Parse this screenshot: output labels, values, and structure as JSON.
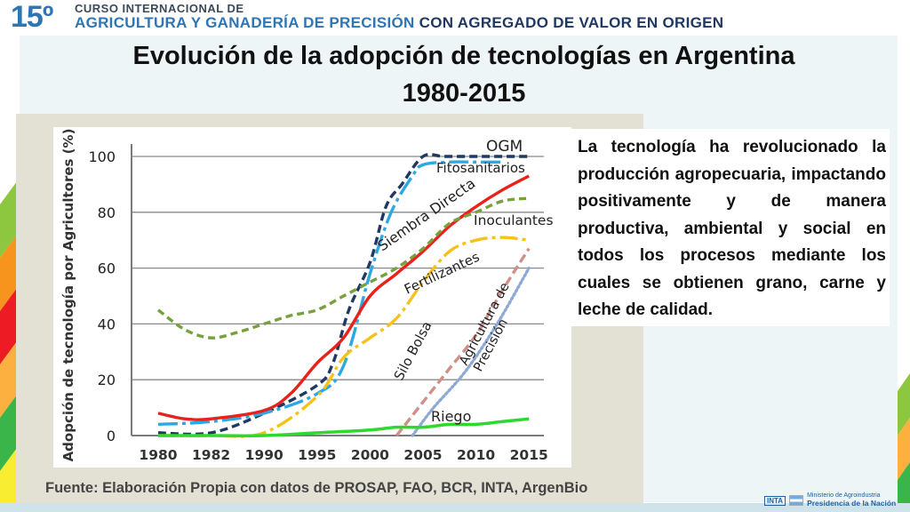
{
  "header": {
    "number": "15º",
    "line1": "CURSO INTERNACIONAL DE",
    "line2_a": "AGRICULTURA Y GANADERÍA DE PRECISIÓN",
    "line2_b": " CON AGREGADO DE VALOR EN ORIGEN"
  },
  "slide": {
    "title_line1": "Evolución de la adopción de tecnologías en Argentina",
    "title_line2": "1980-2015",
    "body_text": "La tecnología ha revolucionado la producción agropecuaria, impactando positivamente y de manera productiva, ambiental y social en todos los procesos mediante los cuales se obtienen grano, carne y leche de calidad.",
    "source": "Fuente: Elaboración Propia con datos de PROSAP, FAO, BCR, INTA, ArgenBio"
  },
  "footer": {
    "inta": "INTA",
    "ministry_line1": "Ministerio de Agroindustria",
    "ministry_line2": "Presidencia de la Nación"
  },
  "chart_data": {
    "type": "line",
    "title": "",
    "xlabel": "",
    "ylabel": "Adopción de tecnología por Agricultores (%)",
    "categories": [
      "1980",
      "1982",
      "1990",
      "1995",
      "2000",
      "2005",
      "2010",
      "2015"
    ],
    "yticks": [
      "0",
      "20",
      "40",
      "60",
      "80",
      "100"
    ],
    "ylim": [
      0,
      100
    ],
    "grid": true,
    "series": [
      {
        "name": "OGM",
        "color": "#1f3864",
        "dash": "9,5",
        "x": [
          0,
          1,
          2,
          3,
          3.3,
          3.6,
          4,
          4.3,
          4.6,
          5,
          5.4,
          6,
          6.4,
          7
        ],
        "values": [
          1,
          1,
          8,
          18,
          26,
          45,
          62,
          82,
          90,
          100,
          100,
          100,
          100,
          100
        ]
      },
      {
        "name": "Fitosanitarios",
        "color": "#2ea8e0",
        "dash": "22,5,4,5",
        "x": [
          0,
          1,
          2,
          3,
          3.5,
          4,
          4.4,
          4.8,
          5,
          5.5,
          6,
          6.5
        ],
        "values": [
          4,
          5,
          8,
          15,
          25,
          58,
          80,
          93,
          97,
          98,
          98,
          98
        ]
      },
      {
        "name": "Siembra Directa",
        "color": "#e8221b",
        "dash": "",
        "x": [
          0,
          0.5,
          1,
          2,
          2.5,
          3,
          3.5,
          4,
          4.5,
          5,
          5.5,
          6,
          6.5,
          7
        ],
        "values": [
          8,
          6,
          6,
          9,
          15,
          26,
          35,
          50,
          58,
          66,
          75,
          82,
          88,
          93
        ]
      },
      {
        "name": "Inoculantes",
        "color": "#77a13c",
        "dash": "8,5",
        "x": [
          0,
          0.5,
          1,
          1.5,
          2,
          2.5,
          3,
          3.5,
          4,
          4.5,
          5,
          5.5,
          6,
          6.5,
          7
        ],
        "values": [
          45,
          38,
          35,
          37,
          40,
          43,
          45,
          50,
          55,
          60,
          67,
          76,
          80,
          84,
          85
        ]
      },
      {
        "name": "Fertilizantes",
        "color": "#f6c21a",
        "dash": "20,5,4,5",
        "x": [
          0,
          1,
          2,
          3,
          3.5,
          4,
          4.5,
          5,
          5.5,
          6,
          6.5,
          7
        ],
        "values": [
          0,
          0,
          1,
          14,
          28,
          35,
          42,
          55,
          66,
          70,
          71,
          70
        ]
      },
      {
        "name": "Silo Bolsa",
        "color": "#d08f88",
        "dash": "10,5",
        "x": [
          4.5,
          5,
          5.5,
          6,
          6.5,
          7
        ],
        "values": [
          0,
          12,
          24,
          36,
          52,
          67
        ]
      },
      {
        "name": "Agricultura de Precisión",
        "color": "#8fa9d6",
        "dash": "2,3",
        "x": [
          4.8,
          5.2,
          5.8,
          6.4,
          7
        ],
        "values": [
          0,
          10,
          23,
          40,
          60
        ]
      },
      {
        "name": "Riego",
        "color": "#2fd82f",
        "dash": "",
        "x": [
          0,
          1,
          2,
          3,
          4,
          4.5,
          5,
          5.5,
          6,
          6.5,
          7
        ],
        "values": [
          0,
          0,
          0,
          1,
          2,
          3,
          3,
          4,
          4,
          5,
          6
        ]
      }
    ],
    "labels": [
      "OGM",
      "Fitosanitarios",
      "Siembra Directa",
      "Inoculantes",
      "Fertilizantes",
      "Silo Bolsa",
      "Agricultura de",
      "Precisión",
      "Riego"
    ]
  }
}
